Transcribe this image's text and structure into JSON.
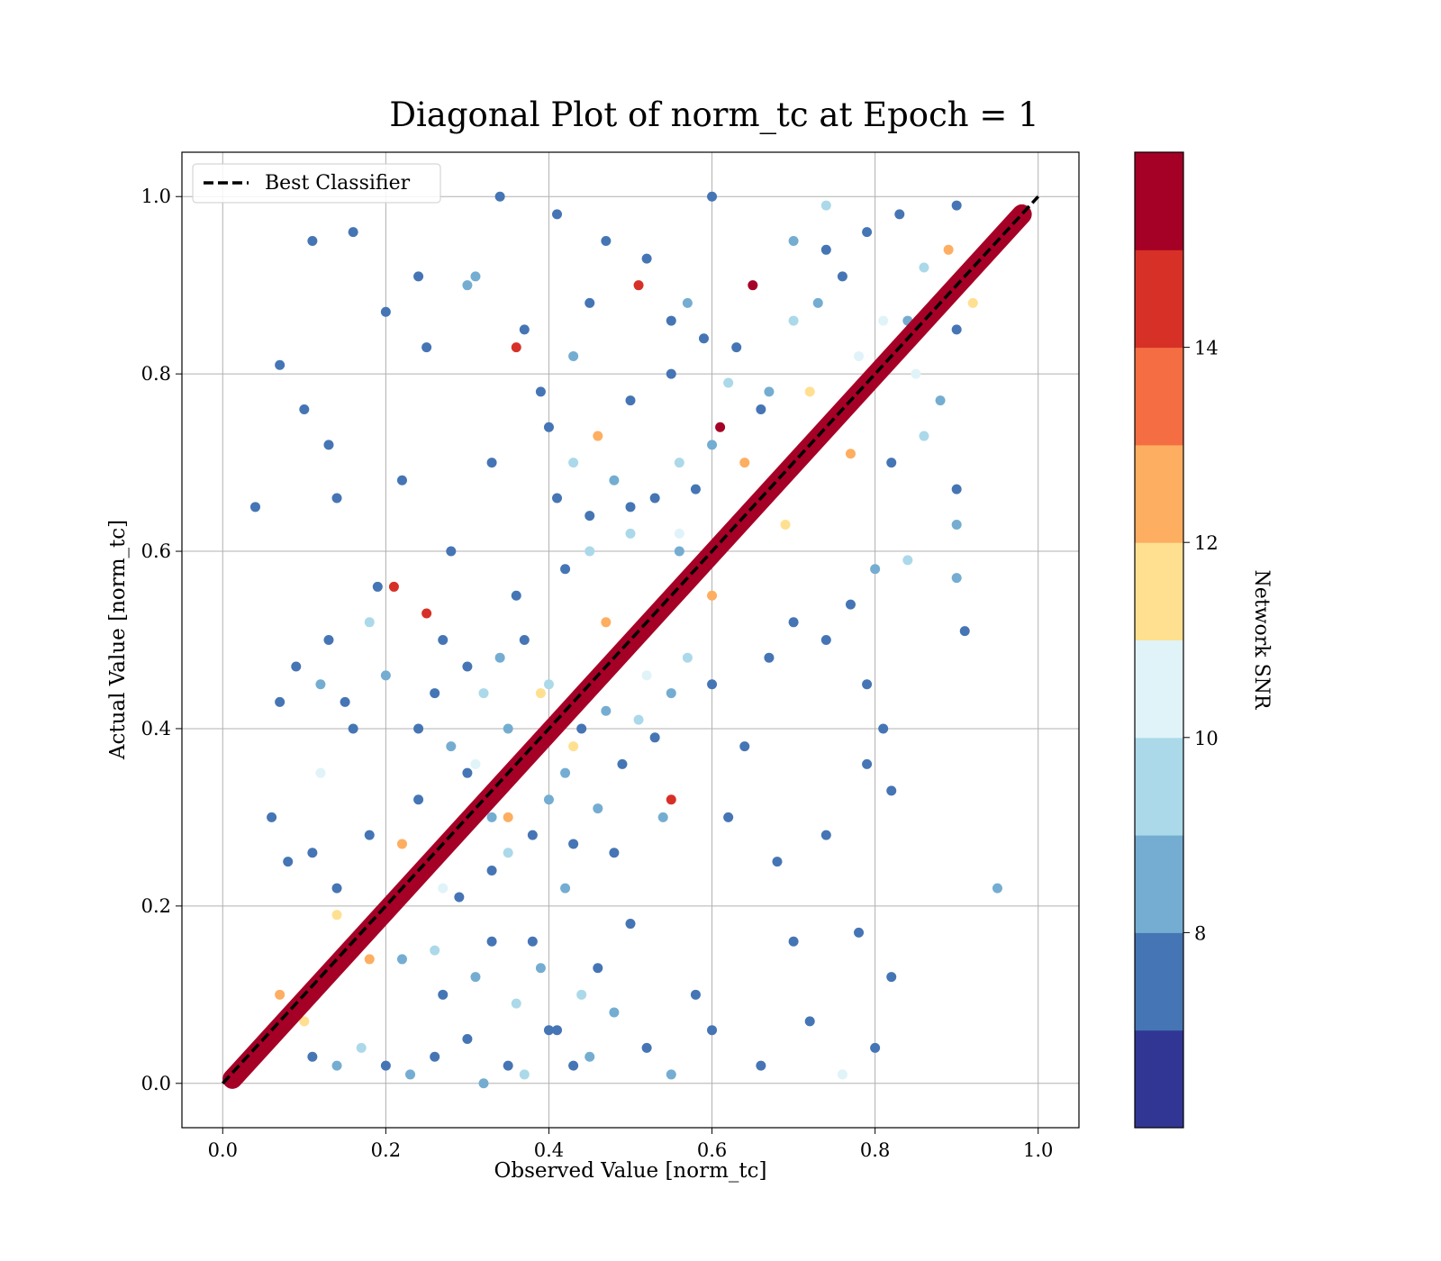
{
  "chart_data": {
    "type": "scatter",
    "title": "Diagonal Plot of norm_tc at Epoch = 1",
    "xlabel": "Observed Value [norm_tc]",
    "ylabel": "Actual Value [norm_tc]",
    "xlim": [
      -0.05,
      1.05
    ],
    "ylim": [
      -0.05,
      1.05
    ],
    "x_ticks": [
      "0.0",
      "0.2",
      "0.4",
      "0.6",
      "0.8",
      "1.0"
    ],
    "y_ticks": [
      "0.0",
      "0.2",
      "0.4",
      "0.6",
      "0.8",
      "1.0"
    ],
    "grid": true,
    "legend": {
      "placement": "upper-left",
      "label": "Best Classifier"
    },
    "reference_line": {
      "label": "Best Classifier",
      "from": [
        0,
        0
      ],
      "to": [
        1,
        1
      ],
      "style": "dashed",
      "color": "#000000"
    },
    "colorbar": {
      "label": "Network SNR",
      "range": [
        6,
        16
      ],
      "ticks": [
        "8",
        "10",
        "12",
        "14"
      ],
      "tick_values": [
        8,
        10,
        12,
        14
      ],
      "colors": [
        "#313695",
        "#4575b4",
        "#74add1",
        "#abd9e9",
        "#e0f3f8",
        "#fee090",
        "#fdae61",
        "#f46d43",
        "#d73027",
        "#a50026"
      ]
    },
    "series": [
      {
        "points": [
          [
            0.05,
            0.05,
            15
          ],
          [
            0.1,
            0.1,
            15
          ],
          [
            0.15,
            0.15,
            15
          ],
          [
            0.2,
            0.2,
            15
          ],
          [
            0.25,
            0.25,
            15
          ],
          [
            0.3,
            0.3,
            15
          ],
          [
            0.35,
            0.35,
            15
          ],
          [
            0.4,
            0.4,
            15
          ],
          [
            0.45,
            0.45,
            15
          ],
          [
            0.5,
            0.5,
            15
          ],
          [
            0.55,
            0.55,
            15
          ],
          [
            0.6,
            0.6,
            15
          ],
          [
            0.65,
            0.65,
            15
          ],
          [
            0.7,
            0.7,
            15
          ],
          [
            0.75,
            0.75,
            15
          ],
          [
            0.8,
            0.8,
            15
          ],
          [
            0.85,
            0.85,
            15
          ],
          [
            0.9,
            0.9,
            15
          ],
          [
            0.95,
            0.95,
            15
          ],
          [
            0.98,
            0.98,
            15
          ],
          [
            0.07,
            0.1,
            12
          ],
          [
            0.14,
            0.19,
            11
          ],
          [
            0.22,
            0.27,
            12
          ],
          [
            0.31,
            0.36,
            10
          ],
          [
            0.39,
            0.44,
            11
          ],
          [
            0.47,
            0.52,
            12
          ],
          [
            0.56,
            0.62,
            10
          ],
          [
            0.64,
            0.7,
            12
          ],
          [
            0.72,
            0.78,
            11
          ],
          [
            0.81,
            0.86,
            10
          ],
          [
            0.89,
            0.94,
            12
          ],
          [
            0.1,
            0.07,
            11
          ],
          [
            0.18,
            0.14,
            12
          ],
          [
            0.27,
            0.22,
            10
          ],
          [
            0.35,
            0.3,
            12
          ],
          [
            0.43,
            0.38,
            11
          ],
          [
            0.52,
            0.46,
            10
          ],
          [
            0.6,
            0.55,
            12
          ],
          [
            0.69,
            0.63,
            11
          ],
          [
            0.77,
            0.71,
            12
          ],
          [
            0.85,
            0.8,
            10
          ],
          [
            0.92,
            0.88,
            11
          ],
          [
            0.11,
            0.95,
            7
          ],
          [
            0.16,
            0.96,
            7
          ],
          [
            0.24,
            0.91,
            7
          ],
          [
            0.34,
            1.0,
            7
          ],
          [
            0.41,
            0.98,
            7
          ],
          [
            0.52,
            0.93,
            7
          ],
          [
            0.6,
            1.0,
            7
          ],
          [
            0.74,
            0.94,
            7
          ],
          [
            0.83,
            0.98,
            7
          ],
          [
            0.9,
            0.99,
            7
          ],
          [
            0.07,
            0.81,
            7
          ],
          [
            0.1,
            0.76,
            7
          ],
          [
            0.13,
            0.72,
            7
          ],
          [
            0.2,
            0.87,
            7
          ],
          [
            0.25,
            0.83,
            7
          ],
          [
            0.3,
            0.9,
            8
          ],
          [
            0.37,
            0.85,
            7
          ],
          [
            0.45,
            0.88,
            7
          ],
          [
            0.55,
            0.86,
            7
          ],
          [
            0.65,
            0.9,
            15
          ],
          [
            0.7,
            0.95,
            8
          ],
          [
            0.04,
            0.65,
            7
          ],
          [
            0.14,
            0.66,
            7
          ],
          [
            0.19,
            0.56,
            7
          ],
          [
            0.22,
            0.68,
            7
          ],
          [
            0.28,
            0.6,
            7
          ],
          [
            0.33,
            0.7,
            7
          ],
          [
            0.4,
            0.74,
            7
          ],
          [
            0.46,
            0.73,
            12
          ],
          [
            0.5,
            0.77,
            7
          ],
          [
            0.55,
            0.8,
            7
          ],
          [
            0.61,
            0.74,
            15
          ],
          [
            0.07,
            0.43,
            7
          ],
          [
            0.09,
            0.47,
            7
          ],
          [
            0.13,
            0.5,
            7
          ],
          [
            0.16,
            0.4,
            7
          ],
          [
            0.21,
            0.56,
            14
          ],
          [
            0.25,
            0.53,
            14
          ],
          [
            0.3,
            0.47,
            7
          ],
          [
            0.36,
            0.55,
            7
          ],
          [
            0.42,
            0.58,
            7
          ],
          [
            0.45,
            0.6,
            9
          ],
          [
            0.5,
            0.65,
            7
          ],
          [
            0.12,
            0.35,
            10
          ],
          [
            0.18,
            0.28,
            7
          ],
          [
            0.24,
            0.32,
            7
          ],
          [
            0.29,
            0.21,
            7
          ],
          [
            0.33,
            0.24,
            7
          ],
          [
            0.38,
            0.16,
            7
          ],
          [
            0.42,
            0.22,
            8
          ],
          [
            0.46,
            0.13,
            7
          ],
          [
            0.5,
            0.18,
            7
          ],
          [
            0.55,
            0.32,
            14
          ],
          [
            0.58,
            0.1,
            7
          ],
          [
            0.06,
            0.3,
            7
          ],
          [
            0.08,
            0.25,
            7
          ],
          [
            0.11,
            0.26,
            7
          ],
          [
            0.14,
            0.22,
            7
          ],
          [
            0.3,
            0.05,
            7
          ],
          [
            0.35,
            0.02,
            7
          ],
          [
            0.4,
            0.06,
            7
          ],
          [
            0.45,
            0.03,
            8
          ],
          [
            0.52,
            0.04,
            7
          ],
          [
            0.6,
            0.06,
            7
          ],
          [
            0.66,
            0.02,
            7
          ],
          [
            0.62,
            0.3,
            7
          ],
          [
            0.68,
            0.25,
            7
          ],
          [
            0.7,
            0.16,
            7
          ],
          [
            0.72,
            0.07,
            7
          ],
          [
            0.74,
            0.28,
            7
          ],
          [
            0.78,
            0.17,
            7
          ],
          [
            0.8,
            0.04,
            7
          ],
          [
            0.82,
            0.12,
            7
          ],
          [
            0.95,
            0.22,
            8
          ],
          [
            0.76,
            0.01,
            10
          ],
          [
            0.6,
            0.45,
            7
          ],
          [
            0.64,
            0.38,
            7
          ],
          [
            0.67,
            0.48,
            7
          ],
          [
            0.7,
            0.52,
            7
          ],
          [
            0.74,
            0.5,
            7
          ],
          [
            0.77,
            0.54,
            7
          ],
          [
            0.79,
            0.45,
            7
          ],
          [
            0.81,
            0.4,
            7
          ],
          [
            0.79,
            0.36,
            7
          ],
          [
            0.82,
            0.33,
            7
          ],
          [
            0.8,
            0.58,
            8
          ],
          [
            0.84,
            0.59,
            9
          ],
          [
            0.9,
            0.57,
            8
          ],
          [
            0.91,
            0.51,
            7
          ],
          [
            0.9,
            0.67,
            7
          ],
          [
            0.9,
            0.63,
            8
          ],
          [
            0.82,
            0.7,
            7
          ],
          [
            0.86,
            0.73,
            9
          ],
          [
            0.88,
            0.77,
            8
          ],
          [
            0.9,
            0.85,
            7
          ],
          [
            0.63,
            0.83,
            7
          ],
          [
            0.67,
            0.78,
            8
          ],
          [
            0.7,
            0.86,
            9
          ],
          [
            0.73,
            0.88,
            8
          ],
          [
            0.76,
            0.91,
            7
          ],
          [
            0.78,
            0.82,
            10
          ],
          [
            0.84,
            0.86,
            8
          ],
          [
            0.86,
            0.92,
            9
          ],
          [
            0.79,
            0.96,
            7
          ],
          [
            0.74,
            0.99,
            9
          ],
          [
            0.31,
            0.91,
            8
          ],
          [
            0.36,
            0.83,
            14
          ],
          [
            0.39,
            0.78,
            7
          ],
          [
            0.43,
            0.82,
            8
          ],
          [
            0.47,
            0.95,
            7
          ],
          [
            0.51,
            0.9,
            14
          ],
          [
            0.57,
            0.88,
            8
          ],
          [
            0.59,
            0.84,
            7
          ],
          [
            0.62,
            0.79,
            9
          ],
          [
            0.66,
            0.76,
            7
          ],
          [
            0.4,
            0.45,
            9
          ],
          [
            0.42,
            0.35,
            8
          ],
          [
            0.44,
            0.4,
            7
          ],
          [
            0.47,
            0.42,
            8
          ],
          [
            0.49,
            0.36,
            7
          ],
          [
            0.51,
            0.41,
            9
          ],
          [
            0.53,
            0.39,
            7
          ],
          [
            0.55,
            0.44,
            8
          ],
          [
            0.57,
            0.48,
            9
          ],
          [
            0.54,
            0.3,
            8
          ],
          [
            0.22,
            0.14,
            8
          ],
          [
            0.26,
            0.15,
            9
          ],
          [
            0.27,
            0.1,
            7
          ],
          [
            0.31,
            0.12,
            8
          ],
          [
            0.33,
            0.16,
            7
          ],
          [
            0.36,
            0.09,
            9
          ],
          [
            0.39,
            0.13,
            8
          ],
          [
            0.41,
            0.06,
            7
          ],
          [
            0.44,
            0.1,
            9
          ],
          [
            0.48,
            0.08,
            8
          ],
          [
            0.2,
            0.02,
            7
          ],
          [
            0.23,
            0.01,
            8
          ],
          [
            0.26,
            0.03,
            7
          ],
          [
            0.17,
            0.04,
            9
          ],
          [
            0.14,
            0.02,
            8
          ],
          [
            0.11,
            0.03,
            7
          ],
          [
            0.32,
            0.0,
            8
          ],
          [
            0.37,
            0.01,
            9
          ],
          [
            0.43,
            0.02,
            7
          ],
          [
            0.55,
            0.01,
            8
          ],
          [
            0.3,
            0.35,
            7
          ],
          [
            0.33,
            0.3,
            8
          ],
          [
            0.35,
            0.26,
            9
          ],
          [
            0.38,
            0.28,
            7
          ],
          [
            0.4,
            0.32,
            8
          ],
          [
            0.43,
            0.27,
            7
          ],
          [
            0.46,
            0.31,
            8
          ],
          [
            0.48,
            0.26,
            7
          ],
          [
            0.35,
            0.4,
            8
          ],
          [
            0.32,
            0.44,
            9
          ],
          [
            0.26,
            0.44,
            7
          ],
          [
            0.28,
            0.38,
            8
          ],
          [
            0.24,
            0.4,
            7
          ],
          [
            0.2,
            0.46,
            8
          ],
          [
            0.18,
            0.52,
            9
          ],
          [
            0.15,
            0.43,
            7
          ],
          [
            0.12,
            0.45,
            8
          ],
          [
            0.27,
            0.5,
            7
          ],
          [
            0.34,
            0.48,
            8
          ],
          [
            0.37,
            0.5,
            7
          ],
          [
            0.56,
            0.6,
            8
          ],
          [
            0.58,
            0.67,
            7
          ],
          [
            0.56,
            0.7,
            9
          ],
          [
            0.6,
            0.72,
            8
          ],
          [
            0.53,
            0.66,
            7
          ],
          [
            0.5,
            0.62,
            9
          ],
          [
            0.48,
            0.68,
            8
          ],
          [
            0.45,
            0.64,
            7
          ],
          [
            0.43,
            0.7,
            9
          ],
          [
            0.41,
            0.66,
            7
          ]
        ]
      }
    ]
  }
}
